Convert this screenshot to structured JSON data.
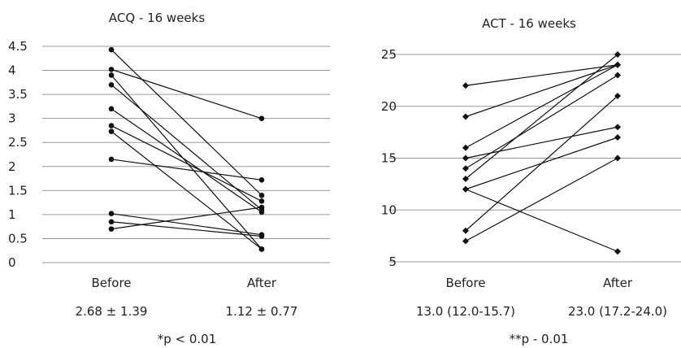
{
  "chart_data": [
    {
      "type": "line",
      "title": "ACQ - 16 weeks",
      "categories": [
        "Before",
        "After"
      ],
      "yticks": [
        "0",
        "0.5",
        "1",
        "1.5",
        "2",
        "2.5",
        "3",
        "3.5",
        "4",
        "4.5"
      ],
      "ylim": [
        0,
        4.5
      ],
      "grid": true,
      "marker": "circle",
      "summary": [
        "2.68 ± 1.39",
        "1.12 ± 0.77"
      ],
      "note": "*p < 0.01",
      "series": [
        {
          "values": [
            4.43,
            1.4
          ]
        },
        {
          "values": [
            4.02,
            3.0
          ]
        },
        {
          "values": [
            3.9,
            0.28
          ]
        },
        {
          "values": [
            3.7,
            1.1
          ]
        },
        {
          "values": [
            3.2,
            1.05
          ]
        },
        {
          "values": [
            2.85,
            1.28
          ]
        },
        {
          "values": [
            2.73,
            0.28
          ]
        },
        {
          "values": [
            2.15,
            1.72
          ]
        },
        {
          "values": [
            1.02,
            0.58
          ]
        },
        {
          "values": [
            0.85,
            0.55
          ]
        },
        {
          "values": [
            0.7,
            1.15
          ]
        }
      ]
    },
    {
      "type": "line",
      "title": "ACT - 16 weeks",
      "categories": [
        "Before",
        "After"
      ],
      "yticks": [
        "5",
        "10",
        "15",
        "20",
        "25"
      ],
      "ylim": [
        5,
        25
      ],
      "grid": true,
      "marker": "diamond",
      "summary": [
        "13.0 (12.0-15.7)",
        "23.0 (17.2-24.0)"
      ],
      "note": "**p - 0.01",
      "series": [
        {
          "values": [
            22,
            24
          ]
        },
        {
          "values": [
            19,
            24
          ]
        },
        {
          "values": [
            16,
            24
          ]
        },
        {
          "values": [
            15,
            18
          ]
        },
        {
          "values": [
            14,
            23
          ]
        },
        {
          "values": [
            13,
            25
          ]
        },
        {
          "values": [
            12,
            17
          ]
        },
        {
          "values": [
            12,
            6
          ]
        },
        {
          "values": [
            8,
            21
          ]
        },
        {
          "values": [
            7,
            15
          ]
        }
      ]
    }
  ]
}
